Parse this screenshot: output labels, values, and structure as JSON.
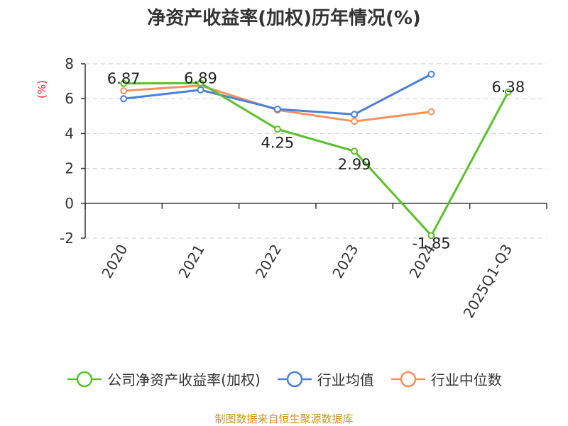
{
  "title": "净资产收益率(加权)历年情况(%)",
  "source": "制图数据来自恒生聚源数据库",
  "chart_data": {
    "type": "line",
    "title": "净资产收益率(加权)历年情况(%)",
    "ylabel": "(%)",
    "xlabel": "",
    "categories": [
      "2020",
      "2021",
      "2022",
      "2023",
      "2024",
      "2025Q1-Q3"
    ],
    "ylim": [
      -2,
      8
    ],
    "yticks": [
      -2,
      0,
      2,
      4,
      6,
      8
    ],
    "grid": true,
    "legend_position": "bottom",
    "series": [
      {
        "name": "公司净资产收益率(加权)",
        "color": "#5ac12b",
        "values": [
          6.87,
          6.89,
          4.25,
          2.99,
          -1.85,
          6.38
        ],
        "labels": [
          "6.87",
          "6.89",
          "4.25",
          "2.99",
          "-1.85",
          "6.38"
        ]
      },
      {
        "name": "行业均值",
        "color": "#4a7fdc",
        "values": [
          6.0,
          6.5,
          5.4,
          5.1,
          7.4,
          null
        ]
      },
      {
        "name": "行业中位数",
        "color": "#f4925d",
        "values": [
          6.45,
          6.75,
          5.35,
          4.7,
          5.25,
          null
        ]
      }
    ]
  }
}
